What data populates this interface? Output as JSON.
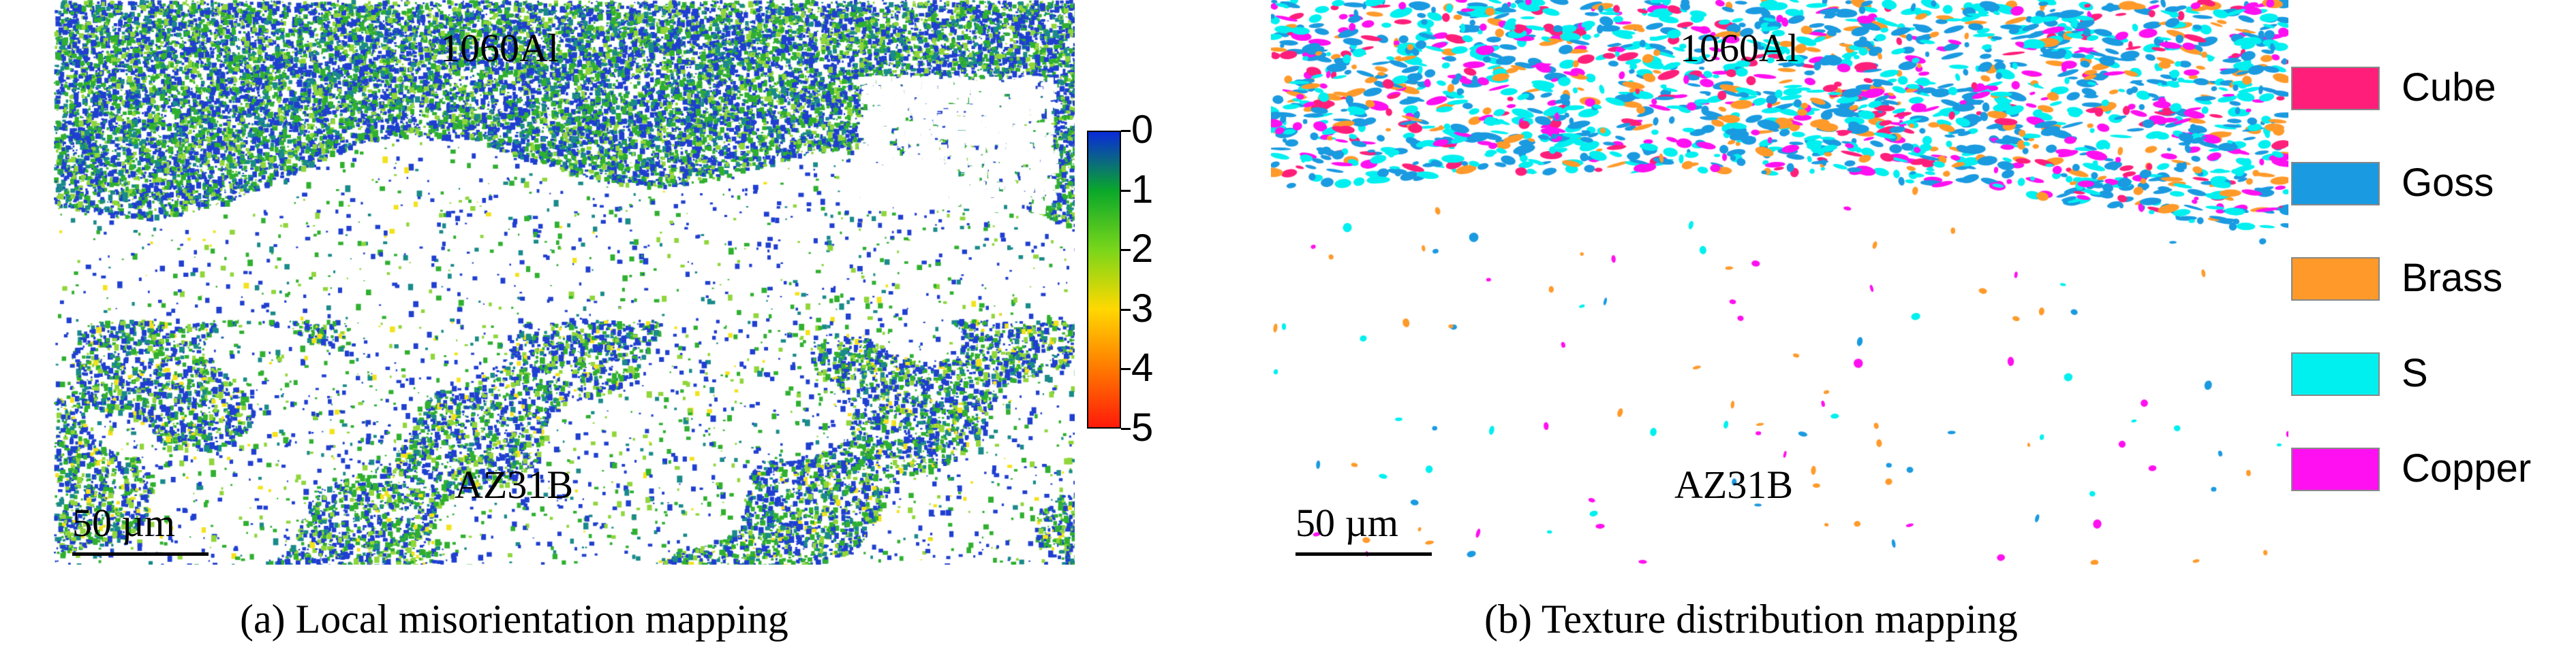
{
  "panel_a": {
    "top_label": "1060Al",
    "bottom_label": "AZ31B",
    "scale_bar": "50 µm",
    "caption": "(a) Local misorientation mapping",
    "colorbar": {
      "ticks": [
        "0",
        "1",
        "2",
        "3",
        "4",
        "5"
      ],
      "colors": [
        "#0a2ad8",
        "#0aa82a",
        "#7ad61a",
        "#ffd800",
        "#ff7a00",
        "#ff1a0a"
      ]
    },
    "map_colors": {
      "blue": "#1f3fd0",
      "teal": "#1a8a8a",
      "green": "#2fb02f",
      "lime": "#8fd63a",
      "yellow": "#f2e21a"
    }
  },
  "panel_b": {
    "top_label": "1060Al",
    "bottom_label": "AZ31B",
    "scale_bar": "50 µm",
    "caption": "(b) Texture distribution mapping",
    "legend": [
      {
        "label": "Cube",
        "color": "#ff1f7a"
      },
      {
        "label": "Goss",
        "color": "#1a9ae0"
      },
      {
        "label": "Brass",
        "color": "#ff9a2a"
      },
      {
        "label": "S",
        "color": "#00f0f0"
      },
      {
        "label": "Copper",
        "color": "#ff10f0"
      }
    ]
  }
}
